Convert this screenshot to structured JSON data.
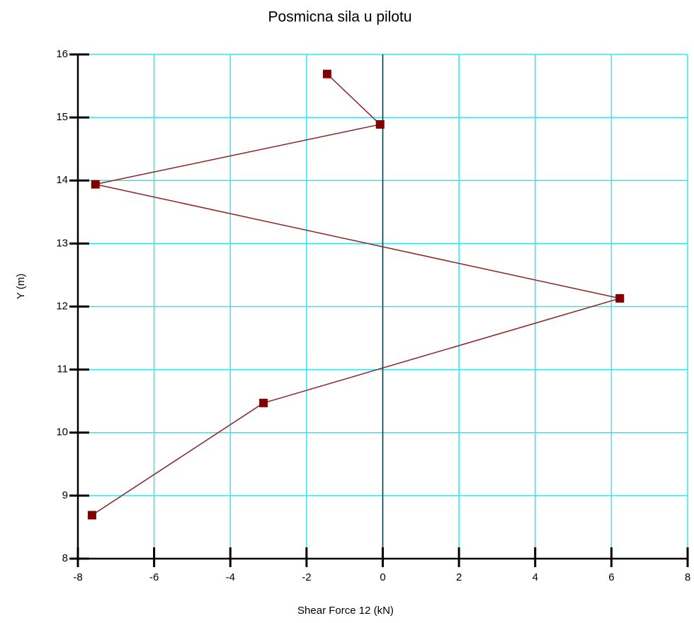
{
  "chart_data": {
    "type": "line",
    "title": "Posmicna sila u pilotu",
    "xlabel": "Shear Force 12 (kN)",
    "ylabel": "Y (m)",
    "series": [
      {
        "color": "#800000",
        "line_color": "#8b2323",
        "x": [
          -1.46,
          -0.07,
          -7.54,
          6.22,
          -3.13,
          -7.63
        ],
        "y": [
          15.69,
          14.89,
          13.94,
          12.13,
          10.47,
          8.69
        ]
      }
    ],
    "xlim": [
      -8,
      8
    ],
    "xticks": [
      -8,
      -6,
      -4,
      -2,
      0,
      2,
      4,
      6,
      8
    ],
    "ylim": [
      8,
      16
    ],
    "yticks": [
      8,
      9,
      10,
      11,
      12,
      13,
      14,
      15,
      16
    ],
    "grid": true,
    "grid_color": "#33e6ee"
  }
}
